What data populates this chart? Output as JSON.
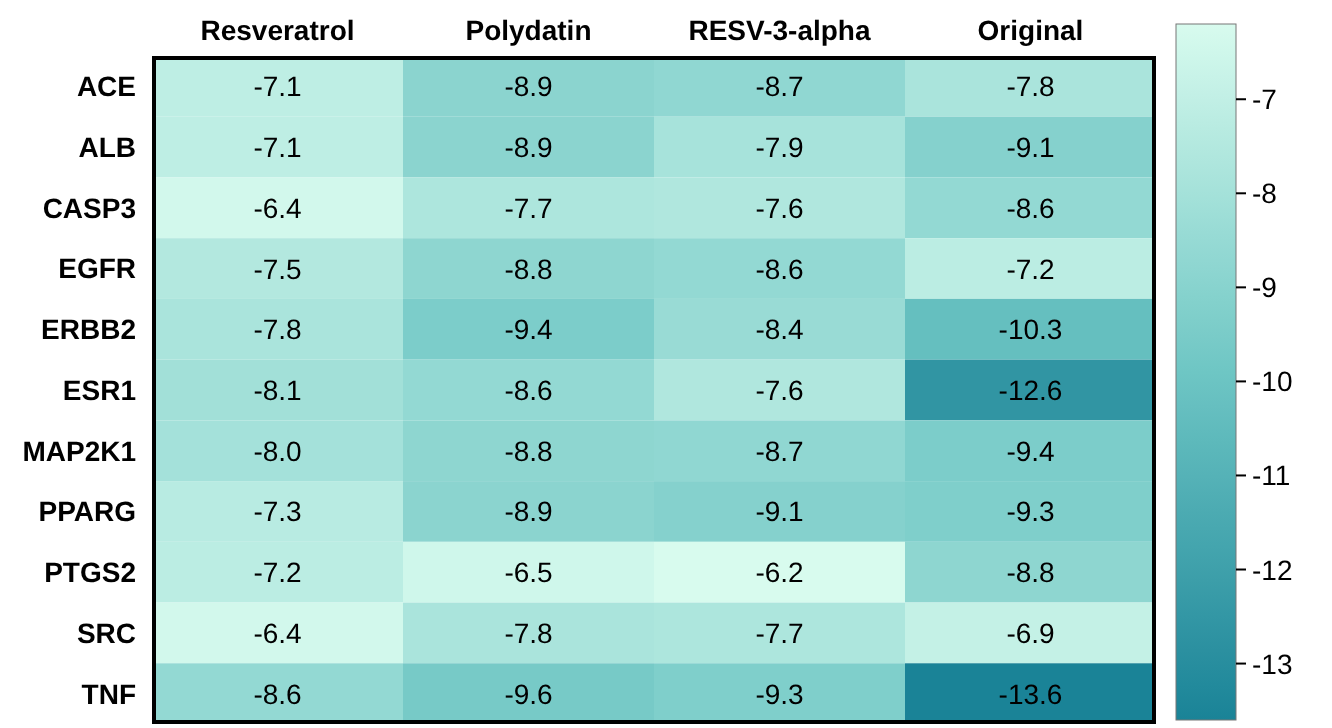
{
  "chart_data": {
    "type": "heatmap",
    "categories": [
      "Resveratrol",
      "Polydatin",
      "RESV-3-alpha",
      "Original"
    ],
    "y_categories": [
      "ACE",
      "ALB",
      "CASP3",
      "EGFR",
      "ERBB2",
      "ESR1",
      "MAP2K1",
      "PPARG",
      "PTGS2",
      "SRC",
      "TNF"
    ],
    "cells": [
      [
        -7.1,
        -8.9,
        -8.7,
        -7.8
      ],
      [
        -7.1,
        -8.9,
        -7.9,
        -9.1
      ],
      [
        -6.4,
        -7.7,
        -7.6,
        -8.6
      ],
      [
        -7.5,
        -8.8,
        -8.6,
        -7.2
      ],
      [
        -7.8,
        -9.4,
        -8.4,
        -10.3
      ],
      [
        -8.1,
        -8.6,
        -7.6,
        -12.6
      ],
      [
        -8.0,
        -8.8,
        -8.7,
        -9.4
      ],
      [
        -7.3,
        -8.9,
        -9.1,
        -9.3
      ],
      [
        -7.2,
        -6.5,
        -6.2,
        -8.8
      ],
      [
        -6.4,
        -7.8,
        -7.7,
        -6.9
      ],
      [
        -8.6,
        -9.6,
        -9.3,
        -13.6
      ]
    ],
    "cell_labels": [
      [
        "-7.1",
        "-8.9",
        "-8.7",
        "-7.8"
      ],
      [
        "-7.1",
        "-8.9",
        "-7.9",
        "-9.1"
      ],
      [
        "-6.4",
        "-7.7",
        "-7.6",
        "-8.6"
      ],
      [
        "-7.5",
        "-8.8",
        "-8.6",
        "-7.2"
      ],
      [
        "-7.8",
        "-9.4",
        "-8.4",
        "-10.3"
      ],
      [
        "-8.1",
        "-8.6",
        "-7.6",
        "-12.6"
      ],
      [
        "-8.0",
        "-8.8",
        "-8.7",
        "-9.4"
      ],
      [
        "-7.3",
        "-8.9",
        "-9.1",
        "-9.3"
      ],
      [
        "-7.2",
        "-6.5",
        "-6.2",
        "-8.8"
      ],
      [
        "-6.4",
        "-7.8",
        "-7.7",
        "-6.9"
      ],
      [
        "-8.6",
        "-9.6",
        "-9.3",
        "-13.6"
      ]
    ],
    "clim": [
      -13.6,
      -6.2
    ],
    "cticks": [
      -7,
      -8,
      -9,
      -10,
      -11,
      -12,
      -13
    ],
    "data_labels": true
  }
}
